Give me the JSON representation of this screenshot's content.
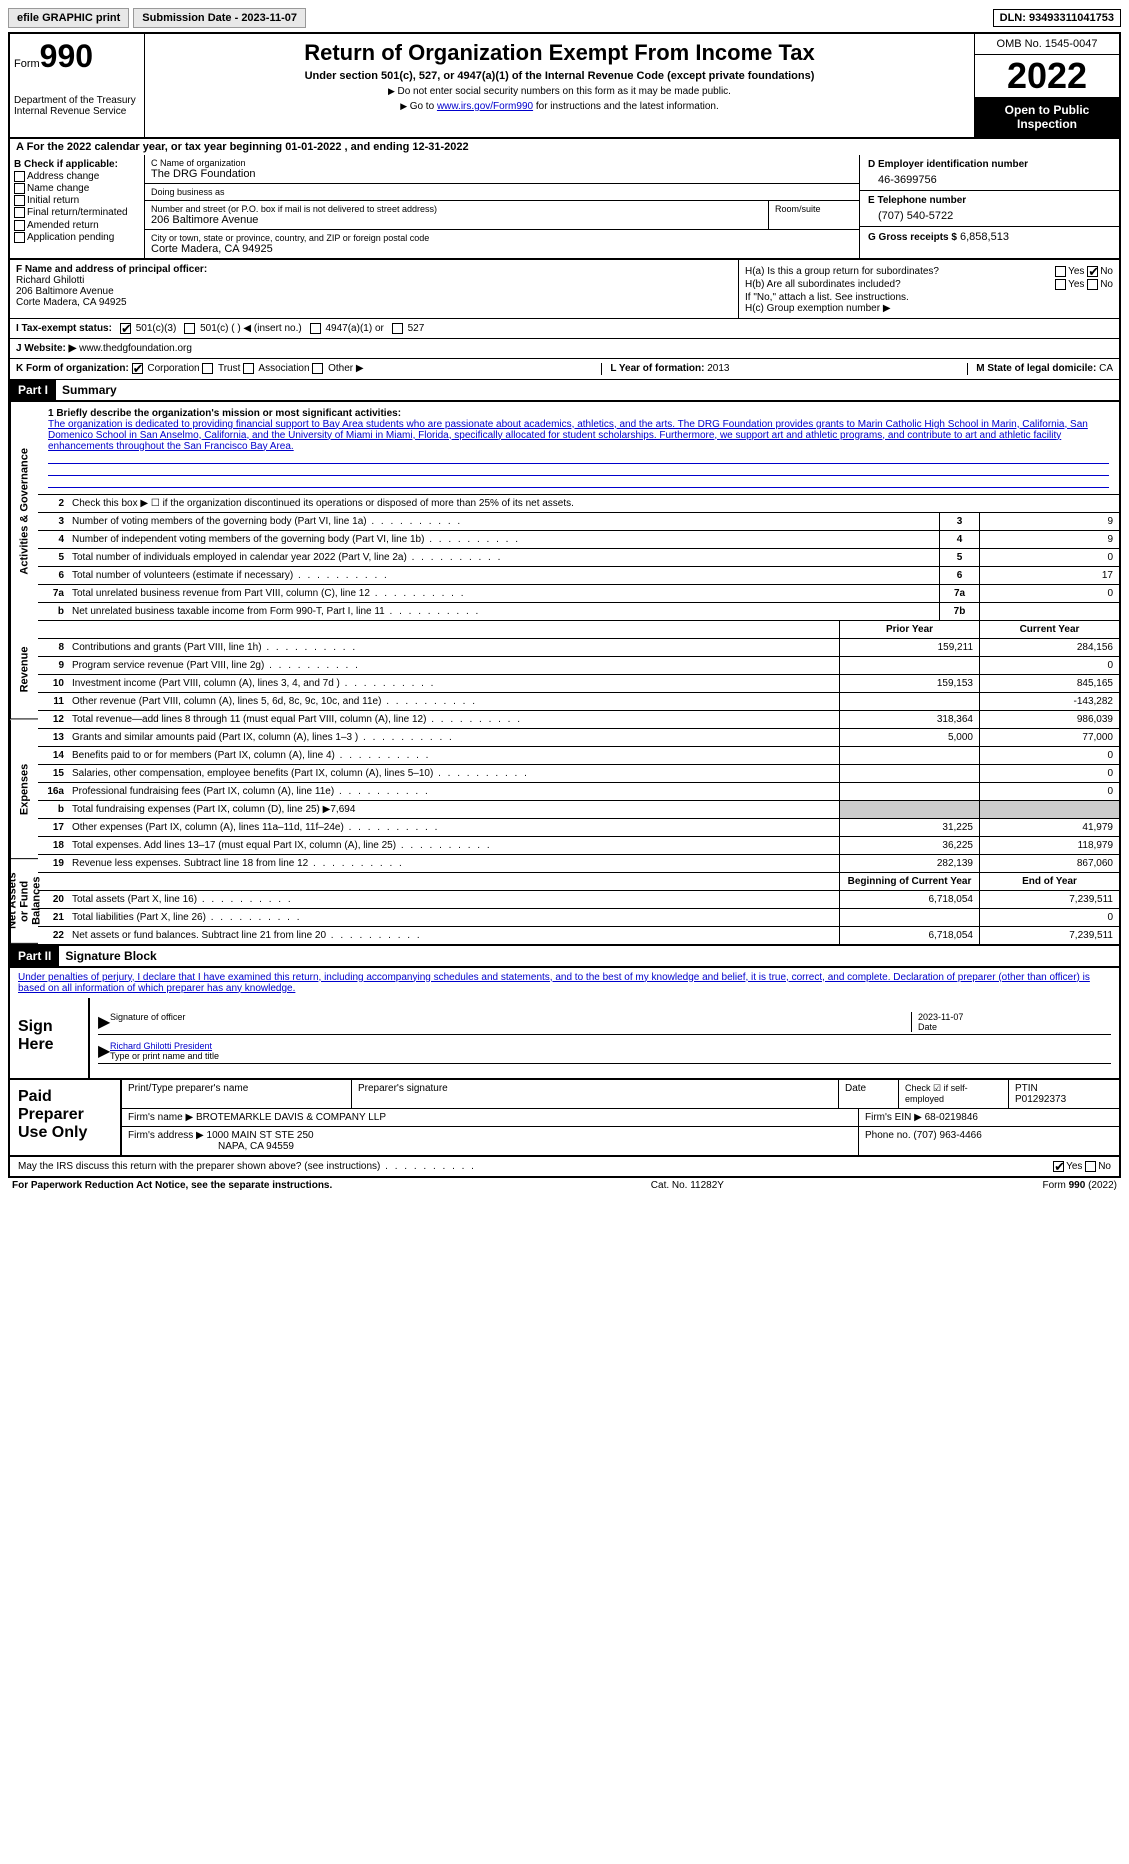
{
  "top": {
    "efile": "efile GRAPHIC print",
    "submission": "Submission Date - 2023-11-07",
    "dln": "DLN: 93493311041753"
  },
  "header": {
    "form_prefix": "Form",
    "form_number": "990",
    "dept": "Department of the Treasury Internal Revenue Service",
    "title": "Return of Organization Exempt From Income Tax",
    "subtitle": "Under section 501(c), 527, or 4947(a)(1) of the Internal Revenue Code (except private foundations)",
    "note1": "Do not enter social security numbers on this form as it may be made public.",
    "note2_prefix": "Go to ",
    "note2_link": "www.irs.gov/Form990",
    "note2_suffix": " for instructions and the latest information.",
    "omb": "OMB No. 1545-0047",
    "year": "2022",
    "open_public": "Open to Public Inspection"
  },
  "row_a": "A For the 2022 calendar year, or tax year beginning 01-01-2022    , and ending 12-31-2022",
  "col_b": {
    "title": "B Check if applicable:",
    "items": [
      "Address change",
      "Name change",
      "Initial return",
      "Final return/terminated",
      "Amended return",
      "Application pending"
    ]
  },
  "col_c": {
    "name_label": "C Name of organization",
    "name": "The DRG Foundation",
    "dba_label": "Doing business as",
    "dba": "",
    "addr_label": "Number and street (or P.O. box if mail is not delivered to street address)",
    "addr": "206 Baltimore Avenue",
    "room_label": "Room/suite",
    "city_label": "City or town, state or province, country, and ZIP or foreign postal code",
    "city": "Corte Madera, CA  94925"
  },
  "col_d": {
    "ein_label": "D Employer identification number",
    "ein": "46-3699756",
    "phone_label": "E Telephone number",
    "phone": "(707) 540-5722",
    "gross_label": "G Gross receipts $",
    "gross": "6,858,513"
  },
  "officer": {
    "label": "F  Name and address of principal officer:",
    "name": "Richard Ghilotti",
    "addr1": "206 Baltimore Avenue",
    "addr2": "Corte Madera, CA  94925"
  },
  "h": {
    "ha": "H(a)  Is this a group return for subordinates?",
    "hb": "H(b)  Are all subordinates included?",
    "hb_note": "If \"No,\" attach a list. See instructions.",
    "hc": "H(c)  Group exemption number ▶"
  },
  "tax_status": "I   Tax-exempt status:",
  "website_label": "J  Website: ▶",
  "website": " www.thedgfoundation.org",
  "form_org": "K Form of organization:",
  "year_formation_label": "L Year of formation:",
  "year_formation": "2013",
  "state_label": "M State of legal domicile:",
  "state": "CA",
  "part1_label": "Part I",
  "part1_title": "Summary",
  "mission_label": "1  Briefly describe the organization's mission or most significant activities:",
  "mission": "The organization is dedicated to providing financial support to Bay Area students who are passionate about academics, athletics, and the arts. The DRG Foundation provides grants to Marin Catholic High School in Marin, California, San Domenico School in San Anselmo, California, and the University of Miami in Miami, Florida, specifically allocated for student scholarships. Furthermore, we support art and athletic programs, and contribute to art and athletic facility enhancements throughout the San Francisco Bay Area.",
  "lines_gov": [
    {
      "n": "2",
      "d": "Check this box ▶ ☐  if the organization discontinued its operations or disposed of more than 25% of its net assets."
    },
    {
      "n": "3",
      "d": "Number of voting members of the governing body (Part VI, line 1a)",
      "box": "3",
      "v": "9"
    },
    {
      "n": "4",
      "d": "Number of independent voting members of the governing body (Part VI, line 1b)",
      "box": "4",
      "v": "9"
    },
    {
      "n": "5",
      "d": "Total number of individuals employed in calendar year 2022 (Part V, line 2a)",
      "box": "5",
      "v": "0"
    },
    {
      "n": "6",
      "d": "Total number of volunteers (estimate if necessary)",
      "box": "6",
      "v": "17"
    },
    {
      "n": "7a",
      "d": "Total unrelated business revenue from Part VIII, column (C), line 12",
      "box": "7a",
      "v": "0"
    },
    {
      "n": "b",
      "d": "Net unrelated business taxable income from Form 990-T, Part I, line 11",
      "box": "7b",
      "v": ""
    }
  ],
  "col_headers": {
    "prior": "Prior Year",
    "current": "Current Year"
  },
  "lines_rev": [
    {
      "n": "8",
      "d": "Contributions and grants (Part VIII, line 1h)",
      "p": "159,211",
      "c": "284,156"
    },
    {
      "n": "9",
      "d": "Program service revenue (Part VIII, line 2g)",
      "p": "",
      "c": "0"
    },
    {
      "n": "10",
      "d": "Investment income (Part VIII, column (A), lines 3, 4, and 7d )",
      "p": "159,153",
      "c": "845,165"
    },
    {
      "n": "11",
      "d": "Other revenue (Part VIII, column (A), lines 5, 6d, 8c, 9c, 10c, and 11e)",
      "p": "",
      "c": "-143,282"
    },
    {
      "n": "12",
      "d": "Total revenue—add lines 8 through 11 (must equal Part VIII, column (A), line 12)",
      "p": "318,364",
      "c": "986,039"
    }
  ],
  "lines_exp": [
    {
      "n": "13",
      "d": "Grants and similar amounts paid (Part IX, column (A), lines 1–3 )",
      "p": "5,000",
      "c": "77,000"
    },
    {
      "n": "14",
      "d": "Benefits paid to or for members (Part IX, column (A), line 4)",
      "p": "",
      "c": "0"
    },
    {
      "n": "15",
      "d": "Salaries, other compensation, employee benefits (Part IX, column (A), lines 5–10)",
      "p": "",
      "c": "0"
    },
    {
      "n": "16a",
      "d": "Professional fundraising fees (Part IX, column (A), line 11e)",
      "p": "",
      "c": "0"
    },
    {
      "n": "b",
      "d": "Total fundraising expenses (Part IX, column (D), line 25) ▶7,694",
      "shaded": true
    },
    {
      "n": "17",
      "d": "Other expenses (Part IX, column (A), lines 11a–11d, 11f–24e)",
      "p": "31,225",
      "c": "41,979"
    },
    {
      "n": "18",
      "d": "Total expenses. Add lines 13–17 (must equal Part IX, column (A), line 25)",
      "p": "36,225",
      "c": "118,979"
    },
    {
      "n": "19",
      "d": "Revenue less expenses. Subtract line 18 from line 12",
      "p": "282,139",
      "c": "867,060"
    }
  ],
  "col_headers2": {
    "beg": "Beginning of Current Year",
    "end": "End of Year"
  },
  "lines_net": [
    {
      "n": "20",
      "d": "Total assets (Part X, line 16)",
      "p": "6,718,054",
      "c": "7,239,511"
    },
    {
      "n": "21",
      "d": "Total liabilities (Part X, line 26)",
      "p": "",
      "c": "0"
    },
    {
      "n": "22",
      "d": "Net assets or fund balances. Subtract line 21 from line 20",
      "p": "6,718,054",
      "c": "7,239,511"
    }
  ],
  "part2_label": "Part II",
  "part2_title": "Signature Block",
  "sig_declaration": "Under penalties of perjury, I declare that I have examined this return, including accompanying schedules and statements, and to the best of my knowledge and belief, it is true, correct, and complete. Declaration of preparer (other than officer) is based on all information of which preparer has any knowledge.",
  "sign_here": "Sign Here",
  "sig_officer": "Signature of officer",
  "sig_date": "2023-11-07",
  "sig_date_label": "Date",
  "sig_name": "Richard Ghilotti  President",
  "sig_name_label": "Type or print name and title",
  "paid_prep": "Paid Preparer Use Only",
  "prep": {
    "name_h": "Print/Type preparer's name",
    "sig_h": "Preparer's signature",
    "date_h": "Date",
    "check_h": "Check ☑ if self-employed",
    "ptin_h": "PTIN",
    "ptin": "P01292373",
    "firm_name_l": "Firm's name   ▶",
    "firm_name": "BROTEMARKLE DAVIS & COMPANY LLP",
    "firm_ein_l": "Firm's EIN ▶",
    "firm_ein": "68-0219846",
    "firm_addr_l": "Firm's address ▶",
    "firm_addr": "1000 MAIN ST STE 250",
    "firm_city": "NAPA, CA  94559",
    "phone_l": "Phone no.",
    "phone": "(707) 963-4466"
  },
  "discuss": "May the IRS discuss this return with the preparer shown above? (see instructions)",
  "footer": {
    "left": "For Paperwork Reduction Act Notice, see the separate instructions.",
    "mid": "Cat. No. 11282Y",
    "right": "Form 990 (2022)"
  },
  "vert_labels": {
    "gov": "Activities & Governance",
    "rev": "Revenue",
    "exp": "Expenses",
    "net": "Net Assets or Fund Balances"
  }
}
